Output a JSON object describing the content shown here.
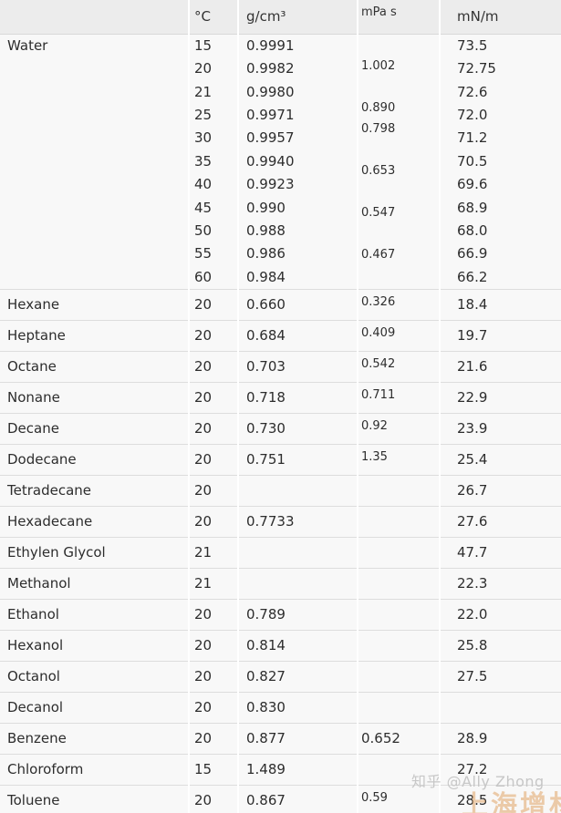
{
  "chart_data": {
    "type": "table",
    "title": "",
    "columns": [
      "",
      "°C",
      "g/cm³",
      "mPa s",
      "mN/m"
    ],
    "column_meanings": [
      "substance",
      "temperature",
      "density",
      "viscosity",
      "surface tension"
    ],
    "water": {
      "name": "Water",
      "temps": [
        "15",
        "20",
        "21",
        "25",
        "30",
        "35",
        "40",
        "45",
        "50",
        "55",
        "60"
      ],
      "densities": [
        "0.9991",
        "0.9982",
        "0.9980",
        "0.9971",
        "0.9957",
        "0.9940",
        "0.9923",
        "0.990",
        "0.988",
        "0.986",
        "0.984"
      ],
      "viscosity_lines": [
        "1.002",
        "",
        "0.890",
        "0.798",
        "",
        "0.653",
        "",
        "0.547",
        "",
        "0.467"
      ],
      "viscosities_by_temp": {
        "20": "1.002",
        "25": "0.890",
        "30": "0.798",
        "40": "0.653",
        "50": "0.547",
        "60": "0.467"
      },
      "tensions": [
        "73.5",
        "72.75",
        "72.6",
        "72.0",
        "71.2",
        "70.5",
        "69.6",
        "68.9",
        "68.0",
        "66.9",
        "66.2"
      ]
    },
    "rows": [
      {
        "name": "Hexane",
        "temp": "20",
        "density": "0.660",
        "viscosity": "0.326",
        "tension": "18.4",
        "visc_small": true
      },
      {
        "name": "Heptane",
        "temp": "20",
        "density": "0.684",
        "viscosity": "0.409",
        "tension": "19.7",
        "visc_small": true
      },
      {
        "name": "Octane",
        "temp": "20",
        "density": "0.703",
        "viscosity": "0.542",
        "tension": "21.6",
        "visc_small": true
      },
      {
        "name": "Nonane",
        "temp": "20",
        "density": "0.718",
        "viscosity": "0.711",
        "tension": "22.9",
        "visc_small": true
      },
      {
        "name": "Decane",
        "temp": "20",
        "density": "0.730",
        "viscosity": "0.92",
        "tension": "23.9",
        "visc_small": true
      },
      {
        "name": "Dodecane",
        "temp": "20",
        "density": "0.751",
        "viscosity": "1.35",
        "tension": "25.4",
        "visc_small": true
      },
      {
        "name": "Tetradecane",
        "temp": "20",
        "density": "",
        "viscosity": "",
        "tension": "26.7",
        "visc_small": false
      },
      {
        "name": "Hexadecane",
        "temp": "20",
        "density": "0.7733",
        "viscosity": "",
        "tension": "27.6",
        "visc_small": false
      },
      {
        "name": "Ethylen Glycol",
        "temp": "21",
        "density": "",
        "viscosity": "",
        "tension": "47.7",
        "visc_small": false
      },
      {
        "name": "Methanol",
        "temp": "21",
        "density": "",
        "viscosity": "",
        "tension": "22.3",
        "visc_small": false
      },
      {
        "name": "Ethanol",
        "temp": "20",
        "density": "0.789",
        "viscosity": "",
        "tension": "22.0",
        "visc_small": false
      },
      {
        "name": "Hexanol",
        "temp": "20",
        "density": "0.814",
        "viscosity": "",
        "tension": "25.8",
        "visc_small": false
      },
      {
        "name": "Octanol",
        "temp": "20",
        "density": "0.827",
        "viscosity": "",
        "tension": "27.5",
        "visc_small": false
      },
      {
        "name": "Decanol",
        "temp": "20",
        "density": "0.830",
        "viscosity": "",
        "tension": "",
        "visc_small": false
      },
      {
        "name": "Benzene",
        "temp": "20",
        "density": "0.877",
        "viscosity": "0.652",
        "tension": "28.9",
        "visc_small": false
      },
      {
        "name": "Chloroform",
        "temp": "15",
        "density": "1.489",
        "viscosity": "",
        "tension": "27.2",
        "visc_small": false
      },
      {
        "name": "Toluene",
        "temp": "20",
        "density": "0.867",
        "viscosity": "0.59",
        "tension": "28.5",
        "visc_small": true
      }
    ]
  },
  "watermarks": {
    "zhihu": "知乎 @Ally Zhong",
    "orange": "上海增材"
  },
  "colors": {
    "header_bg": "#ececec",
    "cell_bg": "#f8f8f8",
    "border": "#dddddd",
    "text": "#2d2d2d",
    "watermark_gray": "#c7c7c7",
    "watermark_orange": "#e2a567"
  }
}
